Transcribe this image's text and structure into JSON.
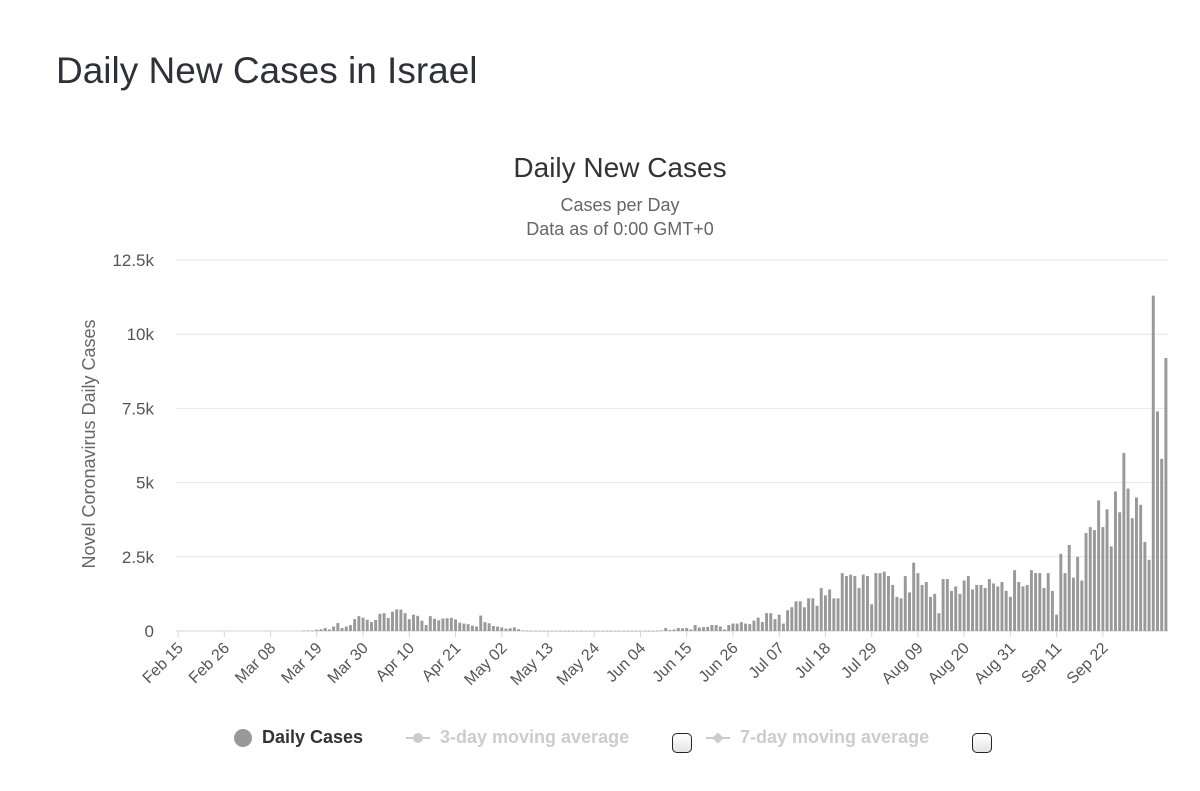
{
  "page": {
    "title": "Daily New Cases in Israel"
  },
  "colors": {
    "bar": "#999999",
    "grid": "#e6e6e6",
    "axis_text": "#555555",
    "title_text": "#333333",
    "legend_active": "#333333",
    "legend_inactive": "#cccccc",
    "legend_dot": "#999999"
  },
  "legend": {
    "daily_cases": "Daily Cases",
    "ma3": "3-day moving average",
    "ma7": "7-day moving average"
  },
  "chart_data": {
    "type": "bar",
    "title": "Daily New Cases",
    "subtitle_1": "Cases per Day",
    "subtitle_2": "Data as of 0:00 GMT+0",
    "ylabel": "Novel Coronavirus Daily Cases",
    "xlabel": "",
    "ylim": [
      0,
      12500
    ],
    "yticks": [
      0,
      2500,
      5000,
      7500,
      10000,
      12500
    ],
    "ytick_labels": [
      "0",
      "2.5k",
      "5k",
      "7.5k",
      "10k",
      "12.5k"
    ],
    "x_start": "Feb 15",
    "x_end": "Sep 25",
    "xtick_labels": [
      "Feb 15",
      "Feb 26",
      "Mar 08",
      "Mar 19",
      "Mar 30",
      "Apr 10",
      "Apr 21",
      "May 02",
      "May 13",
      "May 24",
      "Jun 04",
      "Jun 15",
      "Jun 26",
      "Jul 07",
      "Jul 18",
      "Jul 29",
      "Aug 09",
      "Aug 20",
      "Aug 31",
      "Sep 11",
      "Sep 22"
    ],
    "xtick_every": 11,
    "values": [
      0,
      0,
      0,
      0,
      0,
      0,
      0,
      0,
      0,
      0,
      0,
      0,
      0,
      0,
      0,
      0,
      0,
      0,
      0,
      0,
      0,
      0,
      0,
      0,
      0,
      0,
      0,
      0,
      0,
      0,
      10,
      20,
      10,
      40,
      60,
      100,
      50,
      150,
      270,
      100,
      150,
      200,
      400,
      500,
      450,
      380,
      300,
      370,
      580,
      600,
      440,
      650,
      730,
      720,
      600,
      400,
      550,
      510,
      350,
      200,
      500,
      410,
      360,
      420,
      430,
      440,
      390,
      280,
      250,
      230,
      180,
      150,
      520,
      300,
      260,
      170,
      150,
      120,
      80,
      90,
      120,
      60,
      20,
      10,
      8,
      5,
      5,
      5,
      5,
      5,
      5,
      5,
      5,
      5,
      5,
      5,
      5,
      5,
      5,
      5,
      5,
      5,
      5,
      5,
      5,
      5,
      5,
      5,
      5,
      5,
      5,
      5,
      5,
      5,
      10,
      20,
      100,
      30,
      50,
      100,
      90,
      100,
      50,
      200,
      120,
      130,
      140,
      200,
      200,
      150,
      50,
      200,
      250,
      250,
      300,
      250,
      230,
      350,
      450,
      300,
      600,
      600,
      400,
      550,
      250,
      700,
      800,
      1000,
      1000,
      800,
      1100,
      1100,
      850,
      1450,
      1200,
      1400,
      1100,
      1100,
      1950,
      1850,
      1900,
      1850,
      1450,
      1900,
      1850,
      900,
      1950,
      1950,
      2000,
      1850,
      1550,
      1150,
      1100,
      1850,
      1300,
      2300,
      1950,
      1550,
      1650,
      1150,
      1250,
      600,
      1750,
      1750,
      1350,
      1500,
      1250,
      1700,
      1850,
      1400,
      1550,
      1550,
      1450,
      1750,
      1600,
      1500,
      1650,
      1350,
      1150,
      2050,
      1650,
      1500,
      1550,
      2050,
      1950,
      1950,
      1450,
      1950,
      1350,
      550,
      2600,
      1950,
      2900,
      1800,
      2500,
      1700,
      3300,
      3500,
      3400,
      4400,
      3500,
      4100,
      2850,
      4700,
      4000,
      6000,
      4800,
      3800,
      4500,
      4250,
      3000,
      2400,
      11300,
      7400,
      5800,
      9200
    ]
  }
}
